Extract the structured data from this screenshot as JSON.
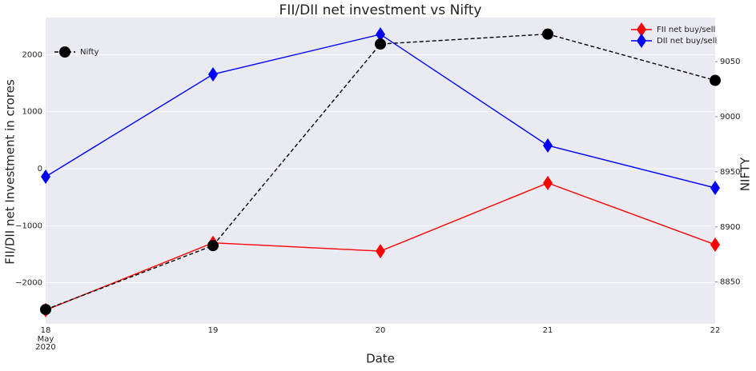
{
  "chart_data": {
    "type": "line",
    "title": "FII/DII net investment vs Nifty",
    "xlabel": "Date",
    "ylabel": "FII/DII net Investment in crores",
    "y2label": "NIFTY",
    "categories": [
      "18",
      "19",
      "20",
      "21",
      "22"
    ],
    "x_month": "May",
    "x_year": "2020",
    "series": [
      {
        "name": "FII net buy/sell",
        "color": "#ff0000",
        "marker": "diamond",
        "dash": false,
        "values": [
          -2480,
          -1300,
          -1445,
          -250,
          -1332
        ]
      },
      {
        "name": "DII net buy/sell",
        "color": "#0000ff",
        "marker": "diamond",
        "dash": false,
        "values": [
          -140,
          1655,
          2356,
          407,
          -337
        ]
      },
      {
        "name": "Nifty",
        "color": "#000000",
        "marker": "circle",
        "dash": true,
        "axis": "y2",
        "values": [
          8825,
          8883,
          9066,
          9075,
          9033
        ]
      }
    ],
    "ylim": [
      -2720,
      2650
    ],
    "yticks": [
      {
        "value": -2000,
        "label": "−2000"
      },
      {
        "value": -1000,
        "label": "−1000"
      },
      0,
      1000,
      2000
    ],
    "y2lim": [
      8812,
      9090
    ],
    "y2ticks": [
      8850,
      8900,
      8950,
      9000,
      9050
    ],
    "grid": true,
    "legend_loc": "upper right",
    "legend2_loc": "upper left"
  }
}
